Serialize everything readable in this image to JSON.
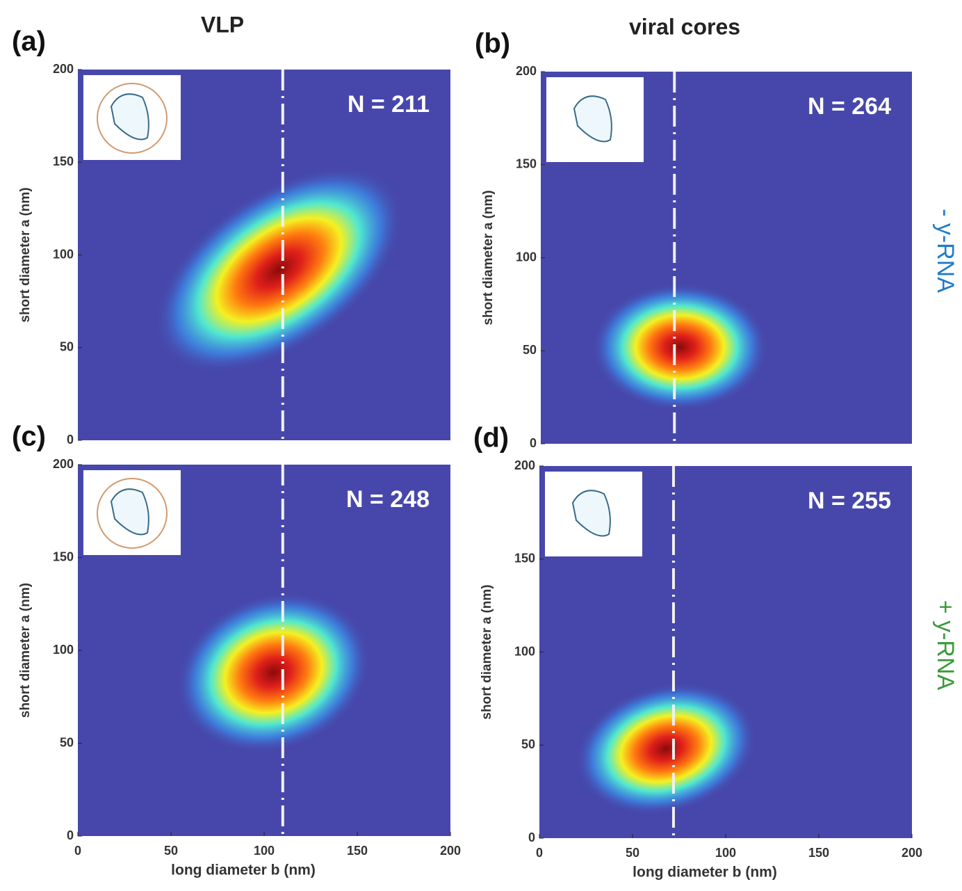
{
  "chart_data": [
    {
      "type": "density",
      "panel": "(a)",
      "title": "VLP",
      "annotation": "N = 211",
      "ylabel": "short diameter a (nm)",
      "xlim": [
        0,
        200
      ],
      "ylim": [
        0,
        200
      ],
      "yticks": [
        0,
        50,
        100,
        150,
        200
      ],
      "peak": {
        "x": 108,
        "y": 92
      },
      "spread": {
        "x": 40,
        "y": 22
      },
      "tilt": 35,
      "reference_x": 110,
      "color": "#4747ab"
    },
    {
      "type": "density",
      "panel": "(b)",
      "title": "viral cores",
      "annotation": "N = 264",
      "side_label": "- y-RNA",
      "side_color": "#1f7bc8",
      "ylabel": "short diameter a (nm)",
      "xlim": [
        0,
        200
      ],
      "ylim": [
        0,
        200
      ],
      "yticks": [
        0,
        50,
        100,
        150,
        200
      ],
      "peak": {
        "x": 75,
        "y": 52
      },
      "spread": {
        "x": 25,
        "y": 18
      },
      "tilt": 0,
      "reference_x": 72,
      "color": "#4747ab"
    },
    {
      "type": "density",
      "panel": "(c)",
      "annotation": "N = 248",
      "xlabel": "long diameter b (nm)",
      "ylabel": "short diameter a (nm)",
      "xlim": [
        0,
        200
      ],
      "ylim": [
        0,
        200
      ],
      "xticks": [
        0,
        50,
        100,
        150,
        200
      ],
      "yticks": [
        0,
        50,
        100,
        150,
        200
      ],
      "peak": {
        "x": 105,
        "y": 88
      },
      "spread": {
        "x": 28,
        "y": 22
      },
      "tilt": 20,
      "reference_x": 110,
      "color": "#4747ab"
    },
    {
      "type": "density",
      "panel": "(d)",
      "annotation": "N = 255",
      "side_label": "+ y-RNA",
      "side_color": "#3a9a3a",
      "xlabel": "long diameter b (nm)",
      "ylabel": "short diameter a (nm)",
      "xlim": [
        0,
        200
      ],
      "ylim": [
        0,
        200
      ],
      "xticks": [
        0,
        50,
        100,
        150,
        200
      ],
      "yticks": [
        0,
        50,
        100,
        150,
        200
      ],
      "peak": {
        "x": 68,
        "y": 48
      },
      "spread": {
        "x": 26,
        "y": 18
      },
      "tilt": 15,
      "reference_x": 72,
      "color": "#4747ab"
    }
  ]
}
